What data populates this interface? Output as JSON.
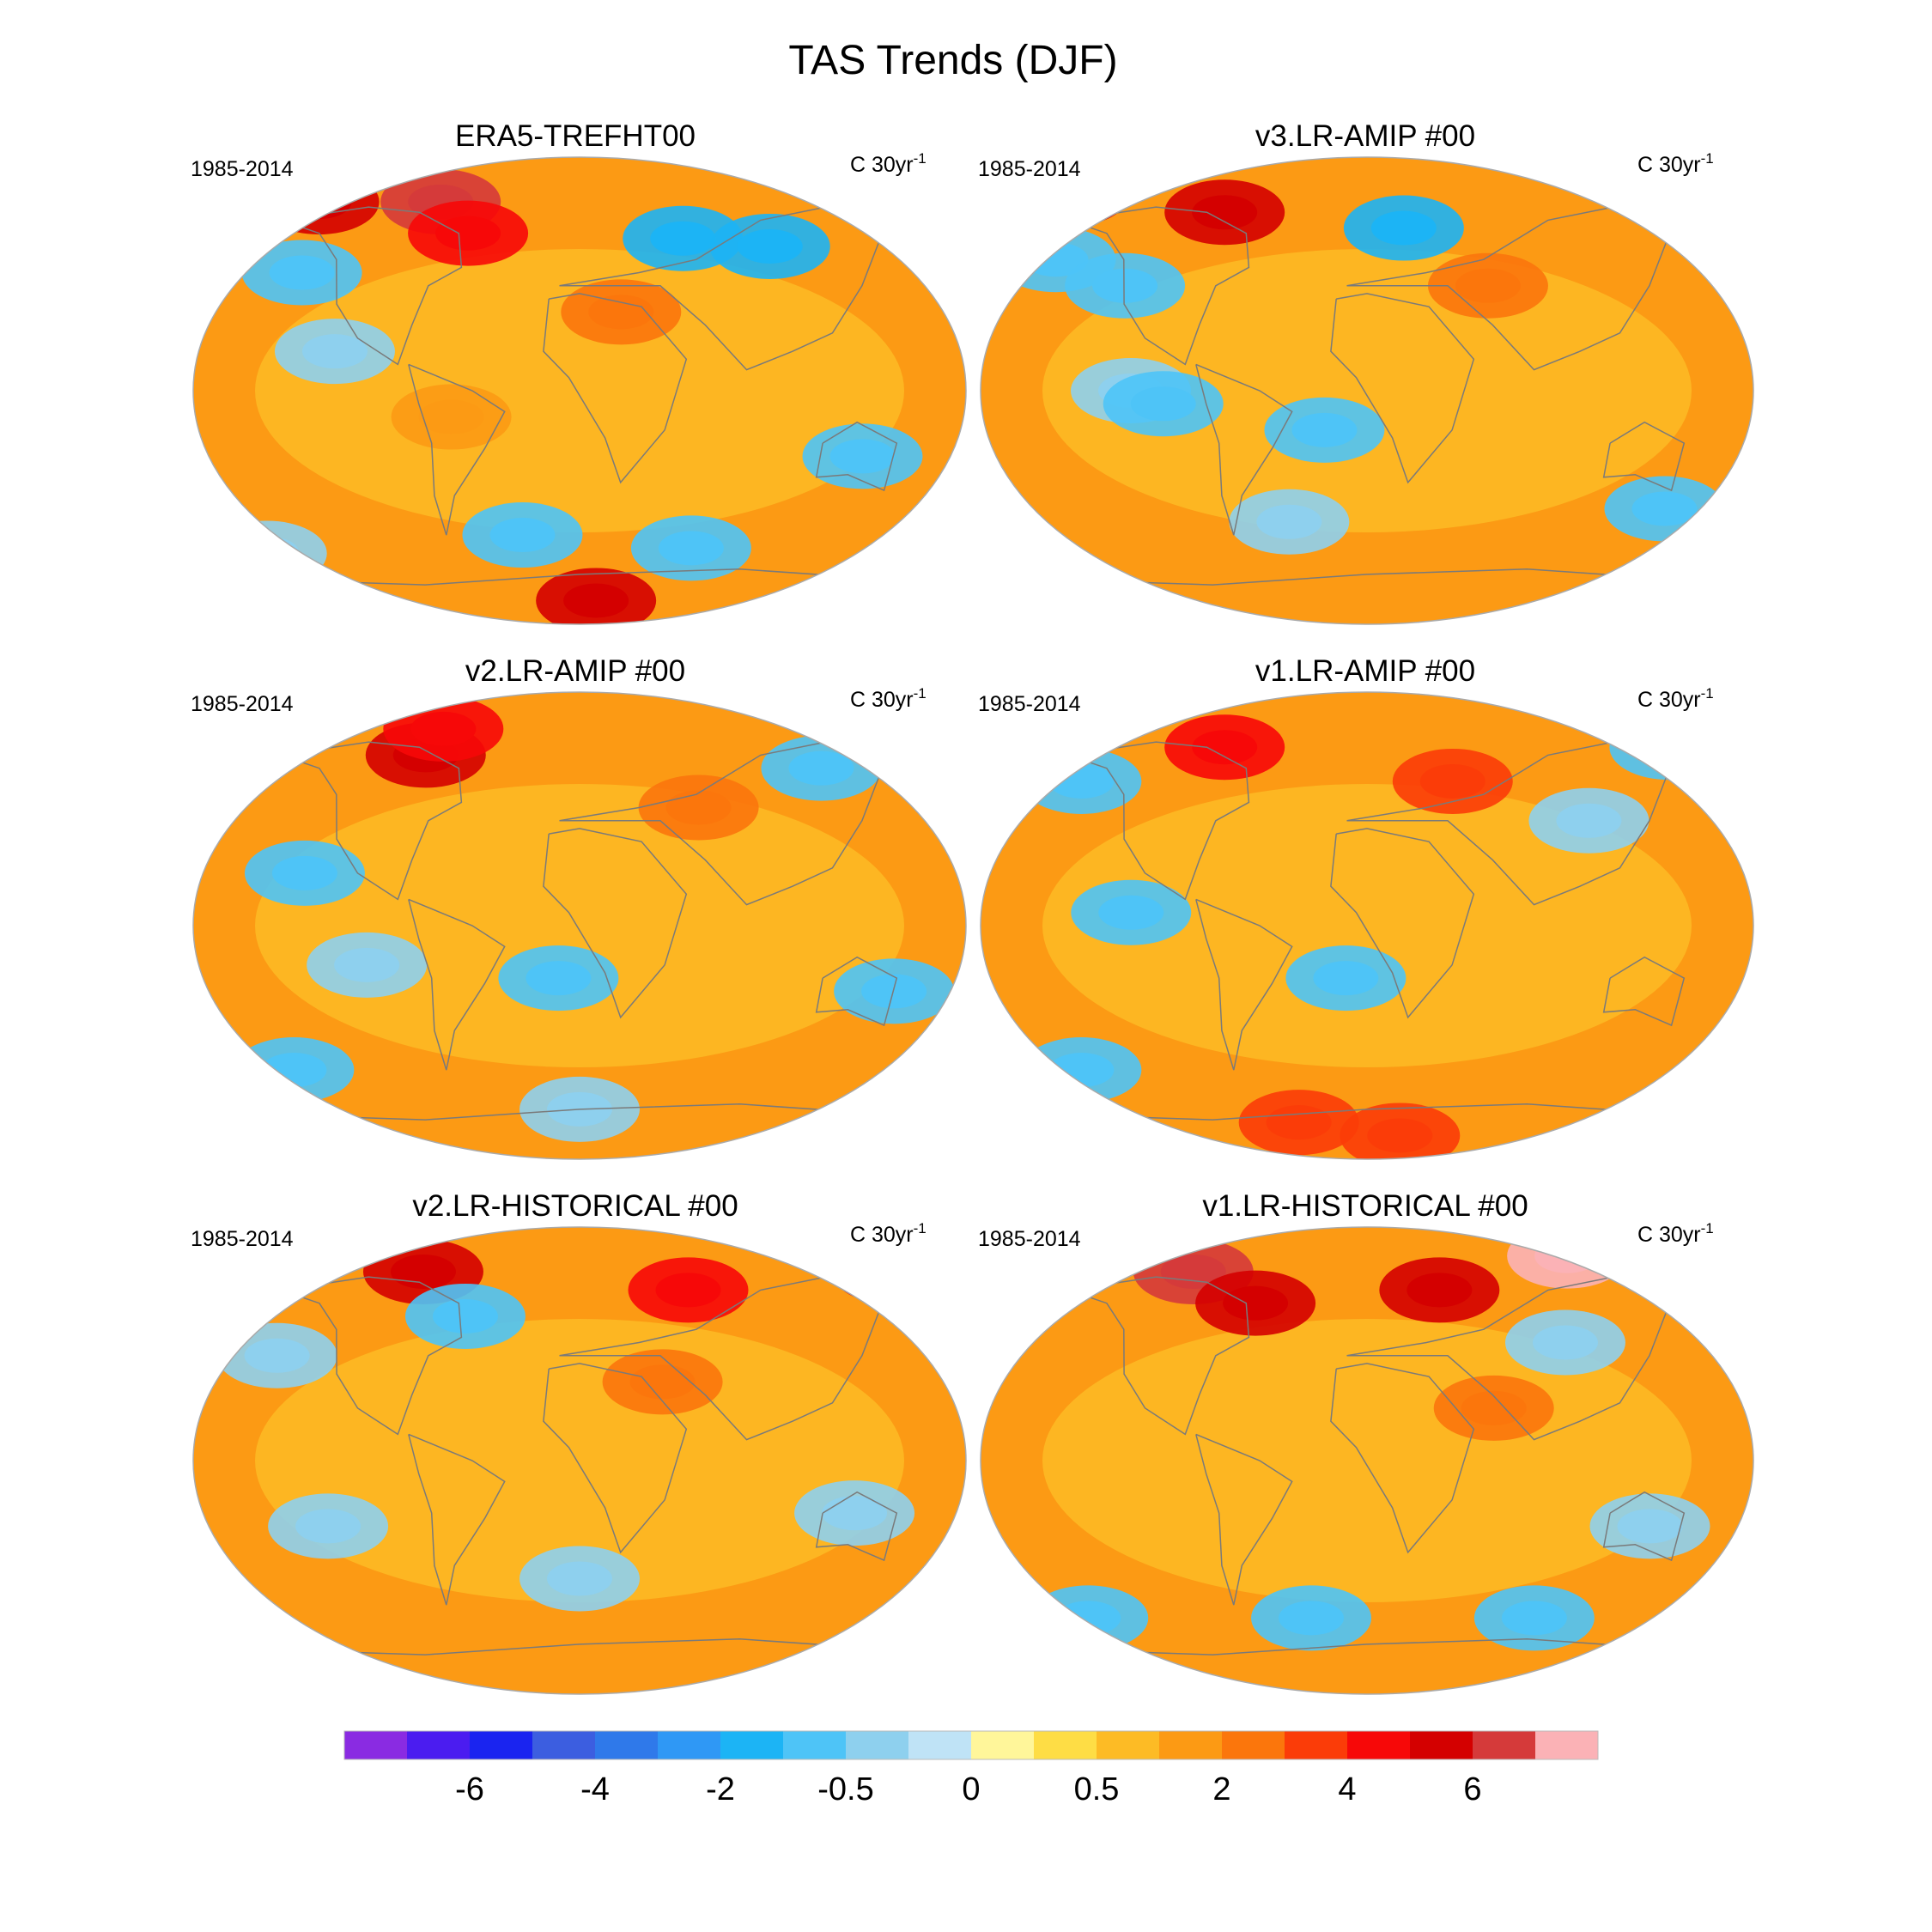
{
  "figure": {
    "title": "TAS Trends (DJF)"
  },
  "chart_data": [
    {
      "type": "heatmap",
      "title": "ERA5-TREFHT00",
      "left_label": "1985-2014",
      "units": "C 30yr",
      "units_exp": "-1",
      "blobs": [
        {
          "lon": -150,
          "lat": 72,
          "v": 5
        },
        {
          "lon": -80,
          "lat": 72,
          "v": 6
        },
        {
          "lon": -60,
          "lat": 60,
          "v": 4
        },
        {
          "lon": 55,
          "lat": 58,
          "v": -1.5
        },
        {
          "lon": 100,
          "lat": 55,
          "v": -1.5
        },
        {
          "lon": -140,
          "lat": 45,
          "v": -1
        },
        {
          "lon": -115,
          "lat": 15,
          "v": -0.5
        },
        {
          "lon": 135,
          "lat": -25,
          "v": -1
        },
        {
          "lon": -30,
          "lat": -55,
          "v": -1
        },
        {
          "lon": 60,
          "lat": -60,
          "v": -1
        },
        {
          "lon": -170,
          "lat": -62,
          "v": -0.5
        },
        {
          "lon": 10,
          "lat": -80,
          "v": 5
        },
        {
          "lon": 20,
          "lat": 30,
          "v": 2
        },
        {
          "lon": -60,
          "lat": -10,
          "v": 1
        }
      ]
    },
    {
      "type": "heatmap",
      "title": "v3.LR-AMIP  #00",
      "left_label": "1985-2014",
      "units": "C 30yr",
      "units_exp": "-1",
      "blobs": [
        {
          "lon": -175,
          "lat": 75,
          "v": 5
        },
        {
          "lon": -80,
          "lat": 68,
          "v": 5
        },
        {
          "lon": -160,
          "lat": 50,
          "v": -1
        },
        {
          "lon": -120,
          "lat": 40,
          "v": -1
        },
        {
          "lon": -110,
          "lat": 0,
          "v": -0.5
        },
        {
          "lon": -95,
          "lat": -5,
          "v": -1
        },
        {
          "lon": -20,
          "lat": -15,
          "v": -1
        },
        {
          "lon": 20,
          "lat": 62,
          "v": -2
        },
        {
          "lon": 150,
          "lat": -45,
          "v": -1
        },
        {
          "lon": 60,
          "lat": 40,
          "v": 2
        },
        {
          "lon": -40,
          "lat": -50,
          "v": -0.5
        }
      ]
    },
    {
      "type": "heatmap",
      "title": "v2.LR-AMIP  #00",
      "left_label": "1985-2014",
      "units": "C 30yr",
      "units_exp": "-1",
      "blobs": [
        {
          "lon": -85,
          "lat": 65,
          "v": 5
        },
        {
          "lon": -80,
          "lat": 75,
          "v": 4
        },
        {
          "lon": 130,
          "lat": 60,
          "v": -1
        },
        {
          "lon": -130,
          "lat": 20,
          "v": -1
        },
        {
          "lon": -100,
          "lat": -15,
          "v": -0.5
        },
        {
          "lon": -10,
          "lat": -20,
          "v": -1
        },
        {
          "lon": -150,
          "lat": -55,
          "v": -1
        },
        {
          "lon": 150,
          "lat": -25,
          "v": -1
        },
        {
          "lon": 60,
          "lat": 45,
          "v": 2
        },
        {
          "lon": 0,
          "lat": -70,
          "v": -0.5
        }
      ]
    },
    {
      "type": "heatmap",
      "title": "v1.LR-AMIP  #00",
      "left_label": "1985-2014",
      "units": "C 30yr",
      "units_exp": "-1",
      "blobs": [
        {
          "lon": -80,
          "lat": 68,
          "v": 4
        },
        {
          "lon": 45,
          "lat": 55,
          "v": 3
        },
        {
          "lon": 170,
          "lat": 68,
          "v": -1
        },
        {
          "lon": -150,
          "lat": 55,
          "v": -1
        },
        {
          "lon": -110,
          "lat": 5,
          "v": -1
        },
        {
          "lon": -10,
          "lat": -20,
          "v": -1
        },
        {
          "lon": -150,
          "lat": -55,
          "v": -1
        },
        {
          "lon": 20,
          "lat": -80,
          "v": 3
        },
        {
          "lon": -40,
          "lat": -75,
          "v": 3
        },
        {
          "lon": 110,
          "lat": 40,
          "v": -0.5
        }
      ]
    },
    {
      "type": "heatmap",
      "title": "v2.LR-HISTORICAL  #00",
      "left_label": "1985-2014",
      "units": "C 30yr",
      "units_exp": "-1",
      "blobs": [
        {
          "lon": 180,
          "lat": 72,
          "v": 5
        },
        {
          "lon": -90,
          "lat": 72,
          "v": 5
        },
        {
          "lon": 60,
          "lat": 65,
          "v": 4
        },
        {
          "lon": -60,
          "lat": 55,
          "v": -1
        },
        {
          "lon": -150,
          "lat": 40,
          "v": -0.5
        },
        {
          "lon": -120,
          "lat": -25,
          "v": -0.5
        },
        {
          "lon": 130,
          "lat": -20,
          "v": -0.5
        },
        {
          "lon": 0,
          "lat": -45,
          "v": -0.5
        },
        {
          "lon": 40,
          "lat": 30,
          "v": 2
        }
      ]
    },
    {
      "type": "heatmap",
      "title": "v1.LR-HISTORICAL  #00",
      "left_label": "1985-2014",
      "units": "C 30yr",
      "units_exp": "-1",
      "blobs": [
        {
          "lon": 120,
          "lat": 78,
          "v": 7
        },
        {
          "lon": -100,
          "lat": 72,
          "v": 6
        },
        {
          "lon": 40,
          "lat": 65,
          "v": 5
        },
        {
          "lon": -60,
          "lat": 60,
          "v": 5
        },
        {
          "lon": 100,
          "lat": 45,
          "v": -0.5
        },
        {
          "lon": -30,
          "lat": -60,
          "v": -1
        },
        {
          "lon": 90,
          "lat": -60,
          "v": -1
        },
        {
          "lon": -150,
          "lat": -60,
          "v": -1
        },
        {
          "lon": 135,
          "lat": -25,
          "v": -0.5
        },
        {
          "lon": 60,
          "lat": 20,
          "v": 2
        }
      ]
    }
  ],
  "colorbar": {
    "colors": [
      "#8a2be2",
      "#4b1cf0",
      "#1a24f0",
      "#3c5ee0",
      "#2f79ea",
      "#2f98f5",
      "#1cb4f5",
      "#4ec4f7",
      "#8ed0ee",
      "#bfe3f6",
      "#fff69a",
      "#fedd45",
      "#fdbb25",
      "#fc9a14",
      "#fb760c",
      "#fb3c08",
      "#f70808",
      "#d40000",
      "#d53a3a",
      "#fbb2b6"
    ],
    "tick_labels": [
      "-6",
      "-4",
      "-2",
      "-0.5",
      "0",
      "0.5",
      "2",
      "4",
      "6"
    ],
    "tick_boundaries": [
      2,
      4,
      6,
      8,
      10,
      12,
      14,
      16,
      18
    ]
  }
}
